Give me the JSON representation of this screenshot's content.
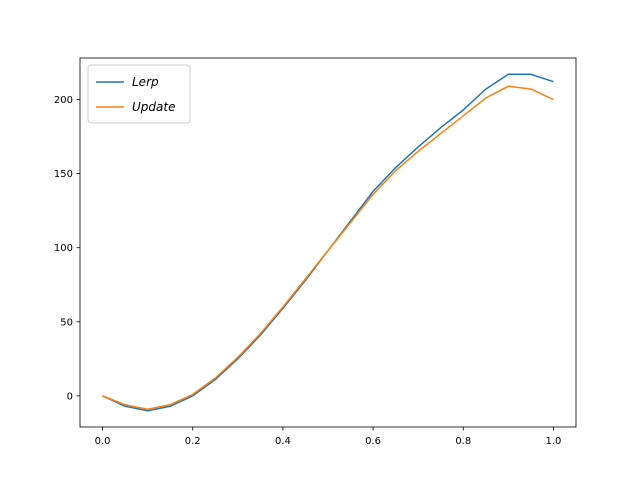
{
  "chart_data": {
    "type": "line",
    "x": [
      0,
      0.05,
      0.1,
      0.15,
      0.2,
      0.25,
      0.3,
      0.35,
      0.4,
      0.45,
      0.5,
      0.55,
      0.6,
      0.65,
      0.7,
      0.75,
      0.8,
      0.85,
      0.9,
      0.95,
      1.0
    ],
    "series": [
      {
        "name": "Lerp",
        "color": "#1f77b4",
        "values": [
          0,
          -7,
          -10,
          -7,
          0,
          11,
          25,
          41,
          59,
          78,
          98,
          118,
          138,
          154,
          168,
          181,
          193,
          207,
          217,
          217,
          212
        ]
      },
      {
        "name": "Update",
        "color": "#ff7f0e",
        "values": [
          0,
          -6,
          -9,
          -6,
          1,
          12,
          26,
          42,
          60,
          79,
          98,
          117,
          136,
          152,
          165,
          177,
          189,
          201,
          209,
          207,
          200
        ]
      }
    ],
    "xlim": [
      -0.05,
      1.05
    ],
    "ylim": [
      -21,
      228
    ],
    "xticks": [
      {
        "value": 0,
        "label": "0.0"
      },
      0.2,
      0.4,
      0.6,
      0.8,
      {
        "value": 1,
        "label": "1.0"
      }
    ],
    "yticks": [
      0,
      50,
      100,
      150,
      200
    ],
    "legend": "upper left",
    "grid": false
  }
}
